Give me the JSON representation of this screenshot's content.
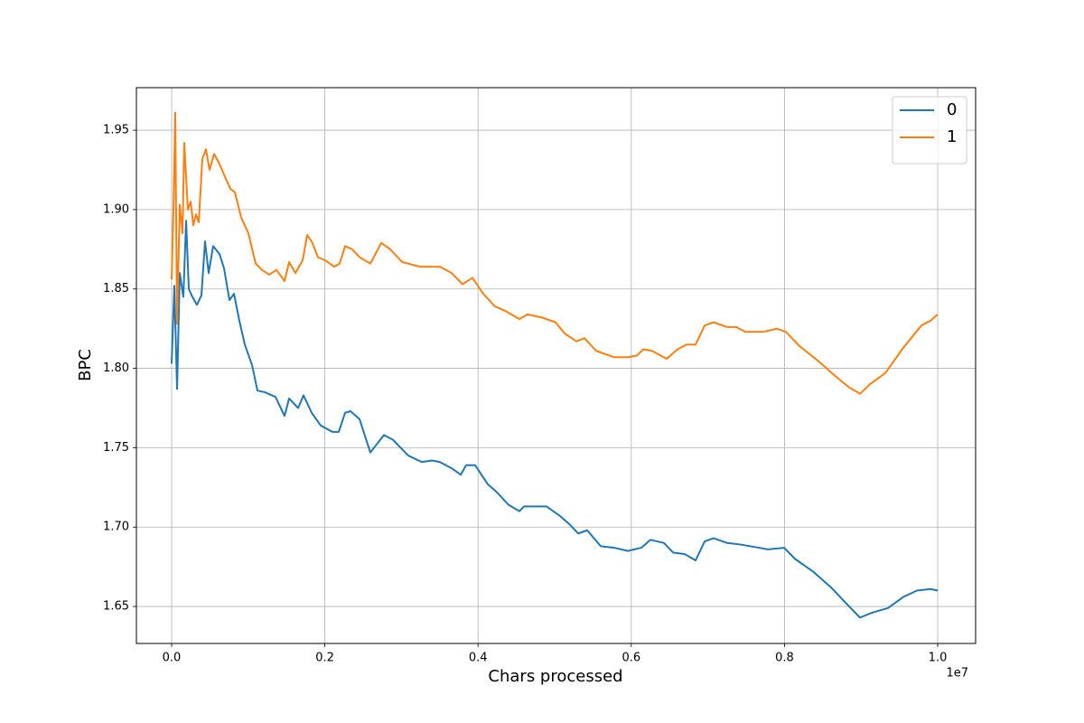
{
  "chart_data": {
    "type": "line",
    "x_label": "Chars processed",
    "y_label": "BPC",
    "x_offset_label": "1e7",
    "xlim": [
      -460000,
      10495000
    ],
    "ylim": [
      1.6267,
      1.9768
    ],
    "xticks": [
      {
        "value": 0,
        "label": "0.0"
      },
      {
        "value": 2000000,
        "label": "0.2"
      },
      {
        "value": 4000000,
        "label": "0.4"
      },
      {
        "value": 6000000,
        "label": "0.6"
      },
      {
        "value": 8000000,
        "label": "0.8"
      },
      {
        "value": 10000000,
        "label": "1.0"
      }
    ],
    "yticks": [
      1.65,
      {
        "value": 1.7,
        "label": "1.70"
      },
      1.75,
      {
        "value": 1.8,
        "label": "1.80"
      },
      1.85,
      {
        "value": 1.9,
        "label": "1.90"
      },
      1.95
    ],
    "grid": true,
    "legend": "upper-right",
    "series": [
      {
        "name": "0",
        "color": "#1f77b4",
        "x": [
          0,
          35000,
          71000,
          106000,
          153000,
          189000,
          224000,
          271000,
          330000,
          389000,
          436000,
          483000,
          542000,
          625000,
          684000,
          755000,
          814000,
          884000,
          955000,
          1050000,
          1120000,
          1215000,
          1356000,
          1474000,
          1533000,
          1651000,
          1722000,
          1828000,
          1946000,
          2099000,
          2182000,
          2264000,
          2335000,
          2453000,
          2594000,
          2771000,
          2889000,
          3090000,
          3267000,
          3396000,
          3502000,
          3656000,
          3774000,
          3844000,
          3962000,
          4127000,
          4245000,
          4399000,
          4540000,
          4599000,
          4788000,
          4894000,
          5071000,
          5189000,
          5307000,
          5425000,
          5601000,
          5778000,
          5955000,
          6132000,
          6250000,
          6427000,
          6545000,
          6698000,
          6840000,
          6958000,
          7075000,
          7252000,
          7429000,
          7665000,
          7783000,
          7995000,
          8137000,
          8373000,
          8608000,
          8844000,
          8986000,
          9139000,
          9351000,
          9552000,
          9729000,
          9906000,
          10000000
        ],
        "values": [
          1.803,
          1.852,
          1.787,
          1.86,
          1.845,
          1.893,
          1.85,
          1.845,
          1.84,
          1.846,
          1.88,
          1.86,
          1.877,
          1.872,
          1.863,
          1.843,
          1.847,
          1.83,
          1.815,
          1.802,
          1.786,
          1.785,
          1.782,
          1.77,
          1.781,
          1.775,
          1.783,
          1.772,
          1.764,
          1.76,
          1.76,
          1.772,
          1.773,
          1.768,
          1.747,
          1.758,
          1.755,
          1.745,
          1.741,
          1.742,
          1.741,
          1.737,
          1.733,
          1.739,
          1.739,
          1.727,
          1.722,
          1.714,
          1.71,
          1.713,
          1.713,
          1.713,
          1.707,
          1.702,
          1.696,
          1.698,
          1.688,
          1.687,
          1.685,
          1.687,
          1.692,
          1.69,
          1.684,
          1.683,
          1.679,
          1.691,
          1.693,
          1.69,
          1.689,
          1.687,
          1.686,
          1.687,
          1.68,
          1.672,
          1.662,
          1.65,
          1.643,
          1.646,
          1.649,
          1.656,
          1.66,
          1.661,
          1.66
        ]
      },
      {
        "name": "1",
        "color": "#ff7f0e",
        "x": [
          0,
          24000,
          47000,
          71000,
          106000,
          142000,
          165000,
          212000,
          248000,
          283000,
          318000,
          354000,
          401000,
          448000,
          495000,
          554000,
          613000,
          684000,
          767000,
          825000,
          908000,
          1002000,
          1097000,
          1179000,
          1274000,
          1368000,
          1474000,
          1533000,
          1616000,
          1710000,
          1769000,
          1828000,
          1910000,
          2005000,
          2123000,
          2193000,
          2264000,
          2358000,
          2453000,
          2594000,
          2736000,
          2854000,
          3007000,
          3243000,
          3502000,
          3656000,
          3797000,
          3927000,
          4068000,
          4222000,
          4363000,
          4540000,
          4646000,
          4835000,
          5012000,
          5130000,
          5283000,
          5389000,
          5542000,
          5778000,
          5955000,
          6073000,
          6156000,
          6274000,
          6462000,
          6604000,
          6722000,
          6840000,
          6958000,
          7075000,
          7252000,
          7370000,
          7488000,
          7724000,
          7901000,
          8019000,
          8196000,
          8432000,
          8667000,
          8844000,
          8986000,
          9116000,
          9316000,
          9552000,
          9788000,
          9906000,
          10000000
        ],
        "values": [
          1.856,
          1.9,
          1.961,
          1.828,
          1.903,
          1.885,
          1.942,
          1.9,
          1.905,
          1.89,
          1.897,
          1.892,
          1.932,
          1.938,
          1.925,
          1.935,
          1.93,
          1.922,
          1.913,
          1.911,
          1.895,
          1.885,
          1.866,
          1.862,
          1.859,
          1.862,
          1.855,
          1.867,
          1.86,
          1.868,
          1.884,
          1.88,
          1.87,
          1.868,
          1.864,
          1.866,
          1.877,
          1.875,
          1.87,
          1.866,
          1.879,
          1.875,
          1.867,
          1.864,
          1.864,
          1.86,
          1.853,
          1.857,
          1.847,
          1.839,
          1.836,
          1.831,
          1.834,
          1.832,
          1.829,
          1.822,
          1.817,
          1.819,
          1.811,
          1.807,
          1.807,
          1.808,
          1.812,
          1.811,
          1.806,
          1.812,
          1.815,
          1.815,
          1.827,
          1.829,
          1.826,
          1.826,
          1.823,
          1.823,
          1.825,
          1.823,
          1.814,
          1.805,
          1.795,
          1.788,
          1.784,
          1.79,
          1.797,
          1.813,
          1.827,
          1.83,
          1.834
        ]
      }
    ]
  }
}
